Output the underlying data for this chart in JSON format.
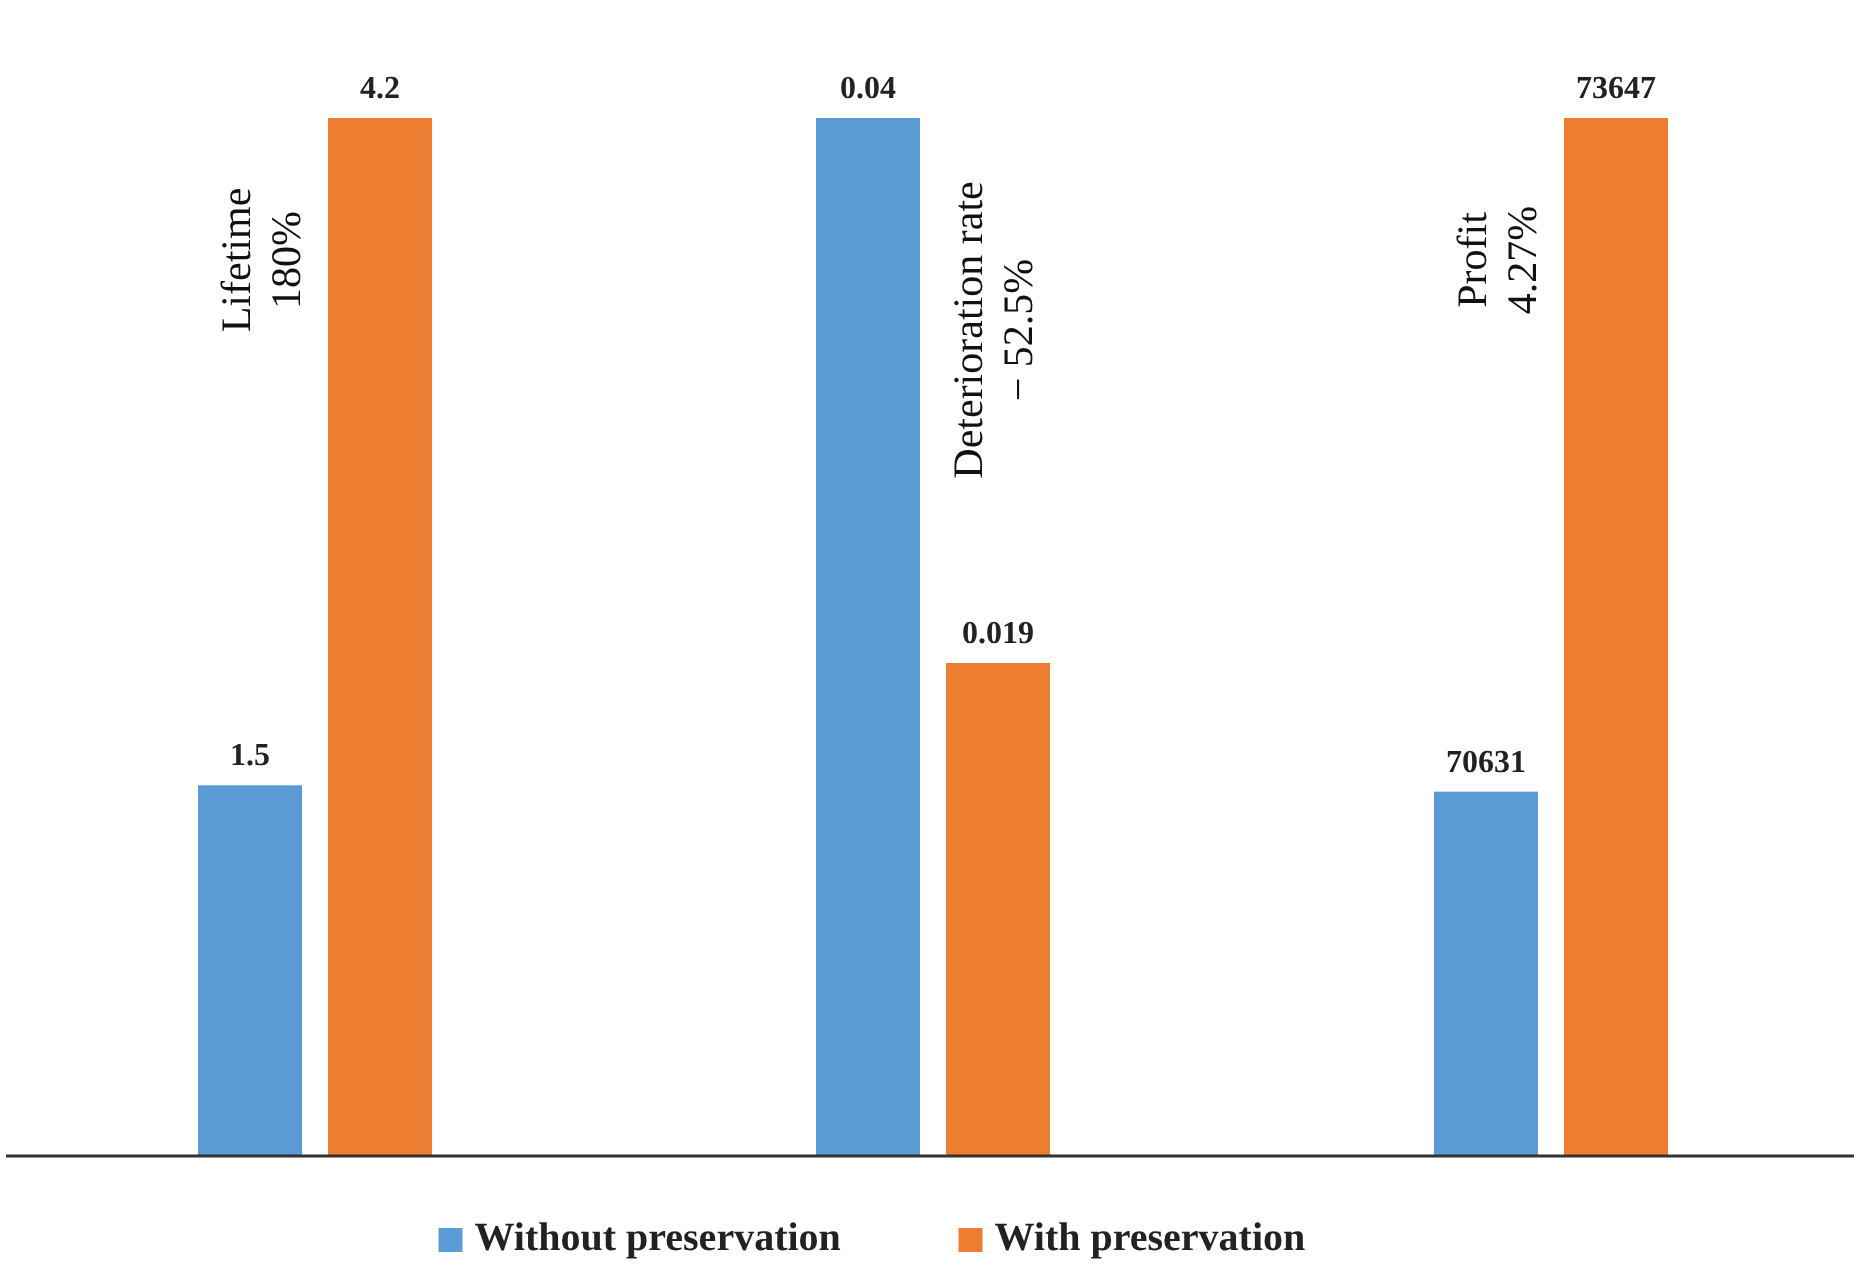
{
  "chart_data": [
    {
      "type": "bar",
      "categories": [
        null
      ],
      "series": [
        {
          "name": "Without preservation",
          "color": "#5b9bd5",
          "values": [
            1.5
          ]
        },
        {
          "name": "With preservation",
          "color": "#ed7d31",
          "values": [
            4.2
          ]
        }
      ],
      "data_labels": true,
      "legend": "bottom",
      "annotations": [
        "Lifetime\n180%"
      ]
    },
    {
      "type": "bar",
      "categories": [
        null
      ],
      "series": [
        {
          "color": "#5b9bd5",
          "values": [
            0.04
          ]
        },
        {
          "color": "#ed7d31",
          "values": [
            0.019
          ]
        }
      ],
      "data_labels": true,
      "annotations": [
        "Deterioration rate\n− 52.5%"
      ]
    },
    {
      "type": "bar",
      "categories": [
        null
      ],
      "series": [
        {
          "color": "#5b9bd5",
          "values": [
            70631
          ]
        },
        {
          "color": "#ed7d31",
          "values": [
            73647
          ]
        }
      ],
      "ylim": [
        69000,
        73647
      ],
      "data_labels": true,
      "annotations": [
        "Profit\n4.27%"
      ]
    }
  ]
}
